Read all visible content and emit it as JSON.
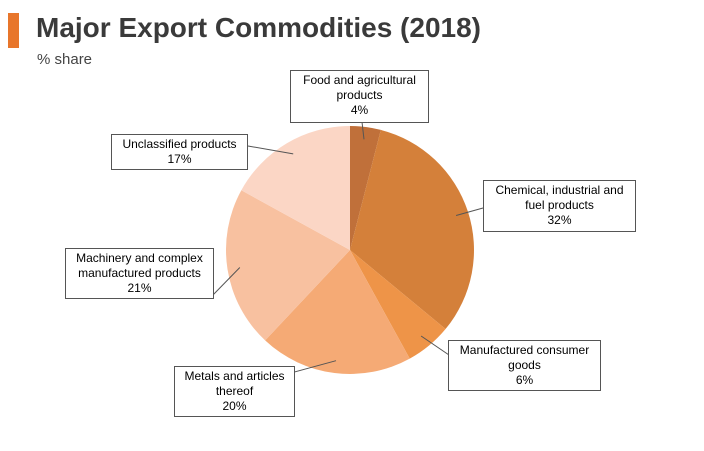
{
  "header": {
    "title": "Major Export Commodities (2018)",
    "subtitle": "% share"
  },
  "colors": {
    "accent": "#e8762b",
    "slices": [
      "#c0703a",
      "#d4803a",
      "#ee9448",
      "#f5aa75",
      "#f8c1a0",
      "#fbd6c5"
    ]
  },
  "chart_data": {
    "type": "pie",
    "title": "Major Export Commodities (2018)",
    "unit": "% share",
    "start_angle": "12 o'clock",
    "direction": "clockwise",
    "slices": [
      {
        "label_lines": [
          "Food and agricultural",
          "products"
        ],
        "value": 4,
        "value_label": "4%"
      },
      {
        "label_lines": [
          "Chemical, industrial and",
          "fuel products"
        ],
        "value": 32,
        "value_label": "32%"
      },
      {
        "label_lines": [
          "Manufactured consumer",
          "goods"
        ],
        "value": 6,
        "value_label": "6%"
      },
      {
        "label_lines": [
          "Metals and articles",
          "thereof"
        ],
        "value": 20,
        "value_label": "20%"
      },
      {
        "label_lines": [
          "Machinery and complex",
          "manufactured products"
        ],
        "value": 21,
        "value_label": "21%"
      },
      {
        "label_lines": [
          "Unclassified products"
        ],
        "value": 17,
        "value_label": "17%"
      }
    ]
  }
}
